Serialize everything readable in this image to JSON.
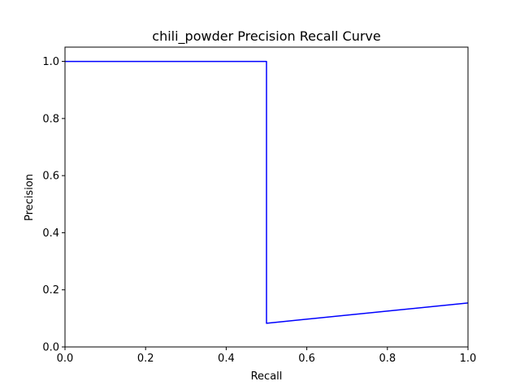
{
  "chart_data": {
    "type": "line",
    "title": "chili_powder Precision Recall Curve",
    "xlabel": "Recall",
    "ylabel": "Precision",
    "xlim": [
      0.0,
      1.0
    ],
    "ylim": [
      0.0,
      1.05
    ],
    "xticks": [
      0.0,
      0.2,
      0.4,
      0.6,
      0.8,
      1.0
    ],
    "xtick_labels": [
      "0.0",
      "0.2",
      "0.4",
      "0.6",
      "0.8",
      "1.0"
    ],
    "yticks": [
      0.0,
      0.2,
      0.4,
      0.6,
      0.8,
      1.0
    ],
    "ytick_labels": [
      "0.0",
      "0.2",
      "0.4",
      "0.6",
      "0.8",
      "1.0"
    ],
    "grid": false,
    "legend": "none",
    "series": [
      {
        "color": "#0000ff",
        "x": [
          0.0,
          0.5,
          0.5,
          1.0
        ],
        "y": [
          1.0,
          1.0,
          0.083,
          0.154
        ]
      }
    ]
  }
}
